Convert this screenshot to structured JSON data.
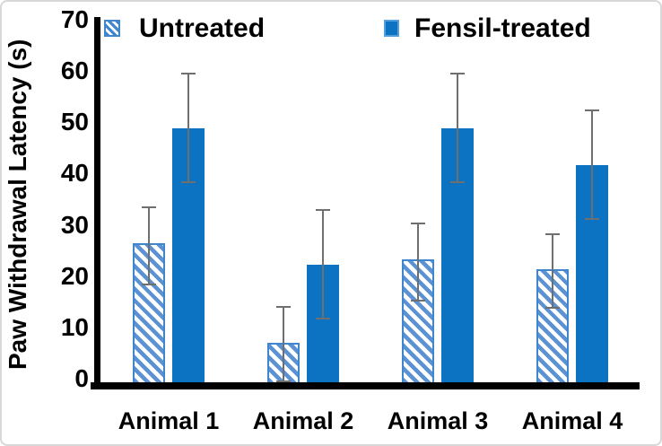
{
  "chart_data": {
    "type": "bar",
    "title": "",
    "xlabel": "",
    "ylabel": "Paw Withdrawal Latency (s)",
    "categories": [
      "Animal 1",
      "Animal 2",
      "Animal 3",
      "Animal 4"
    ],
    "yticks": [
      0,
      10,
      20,
      30,
      40,
      50,
      60,
      70
    ],
    "ylim": [
      0,
      70
    ],
    "grid": false,
    "legend_position": "top-inside",
    "error_bar_color": "#6f6f6f",
    "series": [
      {
        "name": "Untreated",
        "style": "hatched",
        "stripe_color": "#5b92d4",
        "border_color": "#3f86cf",
        "values": [
          27,
          8,
          24,
          22
        ],
        "error_low": [
          19,
          0.5,
          16,
          14.5
        ],
        "error_high": [
          34,
          15,
          31,
          29
        ]
      },
      {
        "name": "Fensil-treated",
        "style": "solid",
        "color": "#0b73c2",
        "values": [
          49,
          23,
          49,
          42
        ],
        "error_low": [
          38.5,
          12.5,
          38.5,
          31.5
        ],
        "error_high": [
          59.5,
          33.5,
          59.5,
          52.5
        ]
      }
    ]
  }
}
